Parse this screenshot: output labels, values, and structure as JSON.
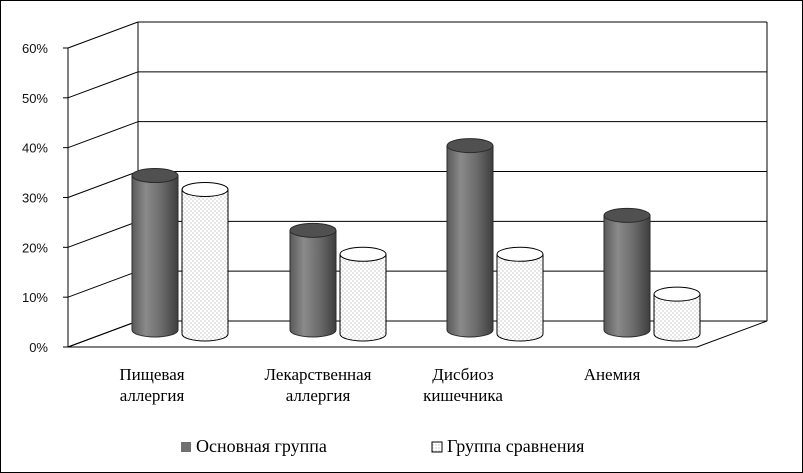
{
  "chart_data": {
    "type": "bar",
    "style": "3d-cylinder",
    "title": "",
    "xlabel": "",
    "ylabel": "",
    "ylim": [
      0,
      60
    ],
    "y_ticks": [
      "0%",
      "10%",
      "20%",
      "30%",
      "40%",
      "50%",
      "60%"
    ],
    "grid": true,
    "legend_position": "bottom",
    "categories": [
      [
        "Пищевая",
        "аллергия"
      ],
      [
        "Лекарственная",
        "аллергия"
      ],
      [
        "Дисбиоз",
        "кишечника"
      ],
      [
        "Анемия"
      ]
    ],
    "series": [
      {
        "name": "Основная группа",
        "values": [
          31,
          20,
          37,
          23
        ],
        "color": "#707070",
        "pattern": "solid"
      },
      {
        "name": "Группа сравнения",
        "values": [
          29,
          16,
          16,
          8
        ],
        "color": "#ffffff",
        "pattern": "dotted"
      }
    ]
  }
}
